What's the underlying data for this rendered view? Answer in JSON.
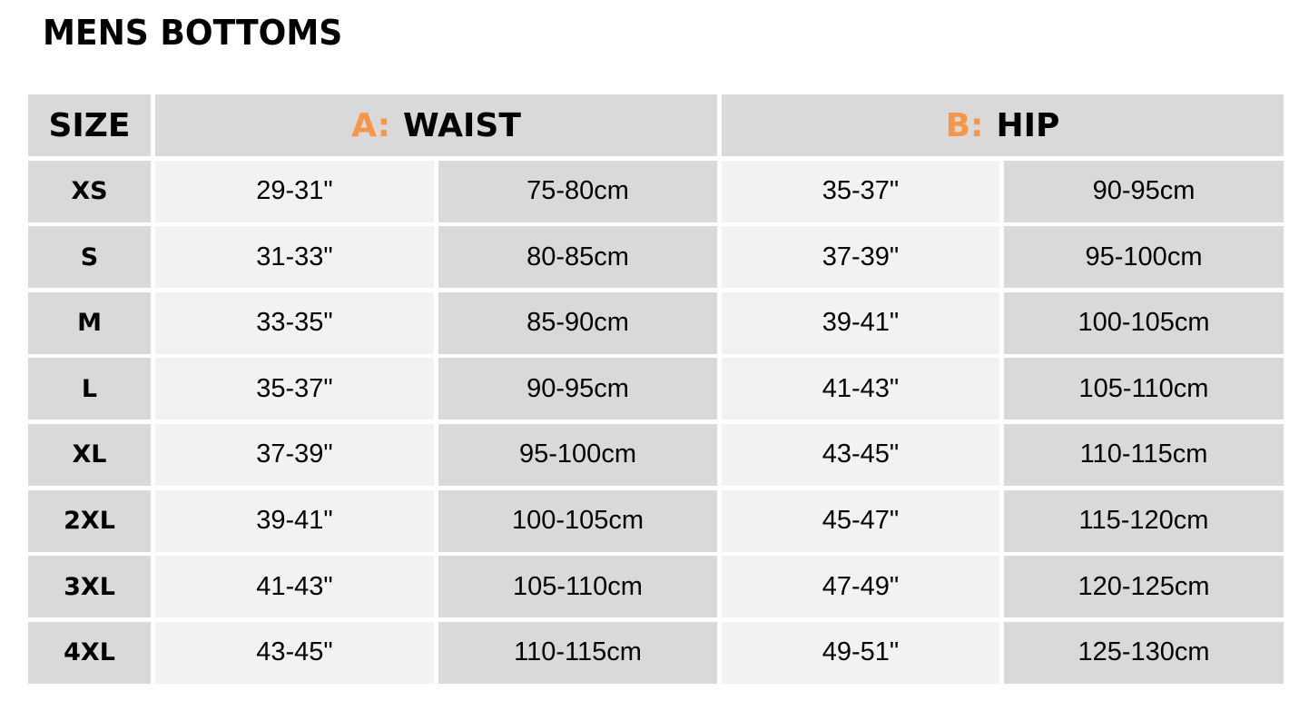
{
  "title": "MENS BOTTOMS",
  "accent_color": "#f79646",
  "header": {
    "size": "SIZE",
    "waist_prefix": "A:",
    "waist": "WAIST",
    "hip_prefix": "B:",
    "hip": "HIP"
  },
  "rows": [
    {
      "size": "XS",
      "waist_in": "29-31\"",
      "waist_cm": "75-80cm",
      "hip_in": "35-37\"",
      "hip_cm": "90-95cm"
    },
    {
      "size": "S",
      "waist_in": "31-33\"",
      "waist_cm": "80-85cm",
      "hip_in": "37-39\"",
      "hip_cm": "95-100cm"
    },
    {
      "size": "M",
      "waist_in": "33-35\"",
      "waist_cm": "85-90cm",
      "hip_in": "39-41\"",
      "hip_cm": "100-105cm"
    },
    {
      "size": "L",
      "waist_in": "35-37\"",
      "waist_cm": "90-95cm",
      "hip_in": "41-43\"",
      "hip_cm": "105-110cm"
    },
    {
      "size": "XL",
      "waist_in": "37-39\"",
      "waist_cm": "95-100cm",
      "hip_in": "43-45\"",
      "hip_cm": "110-115cm"
    },
    {
      "size": "2XL",
      "waist_in": "39-41\"",
      "waist_cm": "100-105cm",
      "hip_in": "45-47\"",
      "hip_cm": "115-120cm"
    },
    {
      "size": "3XL",
      "waist_in": "41-43\"",
      "waist_cm": "105-110cm",
      "hip_in": "47-49\"",
      "hip_cm": "120-125cm"
    },
    {
      "size": "4XL",
      "waist_in": "43-45\"",
      "waist_cm": "110-115cm",
      "hip_in": "49-51\"",
      "hip_cm": "125-130cm"
    }
  ]
}
